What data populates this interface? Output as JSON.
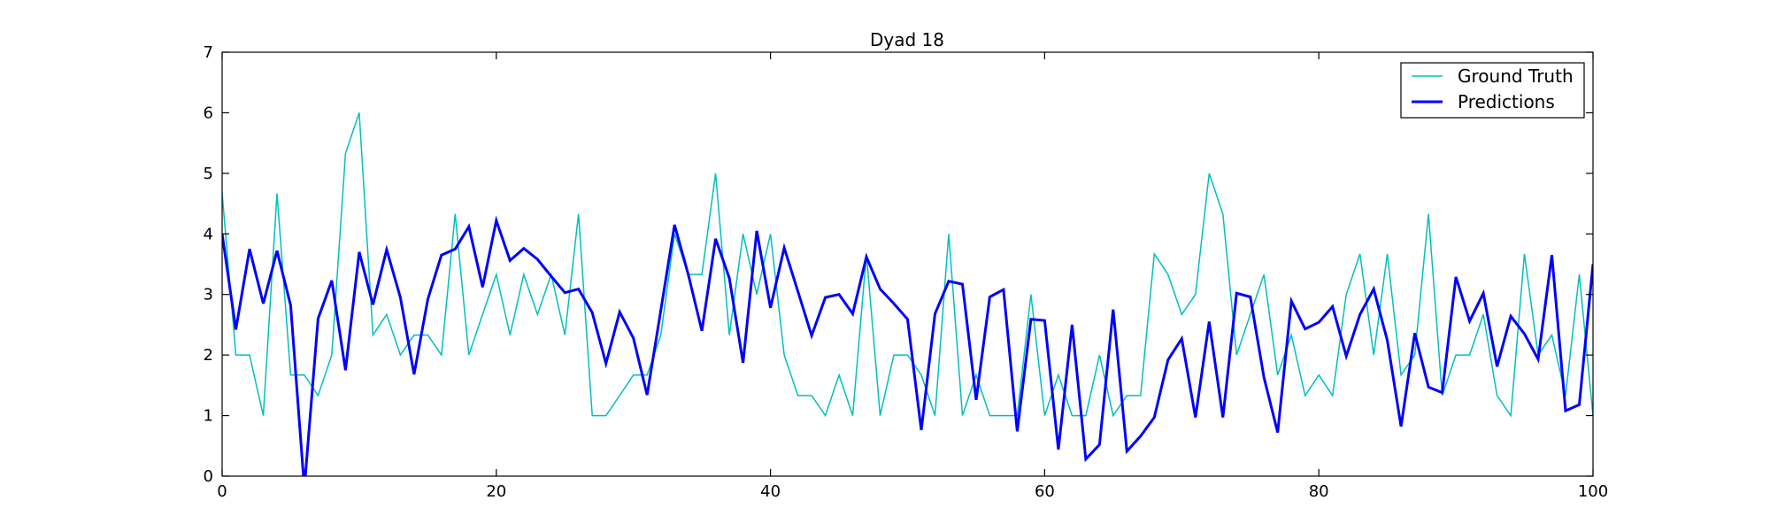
{
  "chart_data": {
    "type": "line",
    "title": "Dyad 18",
    "xlabel": "",
    "ylabel": "",
    "xlim": [
      0,
      100
    ],
    "ylim": [
      0,
      7
    ],
    "xticks": [
      0,
      20,
      40,
      60,
      80,
      100
    ],
    "yticks": [
      0,
      1,
      2,
      3,
      4,
      5,
      6,
      7
    ],
    "grid": false,
    "legend_position": "top-right",
    "x": [
      0,
      1,
      2,
      3,
      4,
      5,
      6,
      7,
      8,
      9,
      10,
      11,
      12,
      13,
      14,
      15,
      16,
      17,
      18,
      19,
      20,
      21,
      22,
      23,
      24,
      25,
      26,
      27,
      28,
      29,
      30,
      31,
      32,
      33,
      34,
      35,
      36,
      37,
      38,
      39,
      40,
      41,
      42,
      43,
      44,
      45,
      46,
      47,
      48,
      49,
      50,
      51,
      52,
      53,
      54,
      55,
      56,
      57,
      58,
      59,
      60,
      61,
      62,
      63,
      64,
      65,
      66,
      67,
      68,
      69,
      70,
      71,
      72,
      73,
      74,
      75,
      76,
      77,
      78,
      79,
      80,
      81,
      82,
      83,
      84,
      85,
      86,
      87,
      88,
      89,
      90,
      91,
      92,
      93,
      94,
      95,
      96,
      97,
      98,
      99,
      100
    ],
    "series": [
      {
        "name": "Ground Truth",
        "color": "#00bfbf",
        "values": [
          4.67,
          2.0,
          2.0,
          1.0,
          4.67,
          1.67,
          1.67,
          1.33,
          2.0,
          5.33,
          6.0,
          2.33,
          2.67,
          2.0,
          2.33,
          2.33,
          2.0,
          4.33,
          2.0,
          2.67,
          3.33,
          2.33,
          3.33,
          2.67,
          3.33,
          2.33,
          4.33,
          1.0,
          1.0,
          1.33,
          1.67,
          1.67,
          2.33,
          4.0,
          3.33,
          3.33,
          5.0,
          2.33,
          4.0,
          3.0,
          4.0,
          2.0,
          1.33,
          1.33,
          1.0,
          1.67,
          1.0,
          3.67,
          1.0,
          2.0,
          2.0,
          1.67,
          1.0,
          4.0,
          1.0,
          1.67,
          1.0,
          1.0,
          1.0,
          3.0,
          1.0,
          1.67,
          1.0,
          1.0,
          2.0,
          1.0,
          1.33,
          1.33,
          3.67,
          3.33,
          2.67,
          3.0,
          5.0,
          4.33,
          2.0,
          2.67,
          3.33,
          1.67,
          2.33,
          1.33,
          1.67,
          1.33,
          3.0,
          3.67,
          2.0,
          3.67,
          1.67,
          2.0,
          4.33,
          1.33,
          2.0,
          2.0,
          2.67,
          1.33,
          1.0,
          3.67,
          2.0,
          2.33,
          1.33,
          3.33,
          1.0
        ]
      },
      {
        "name": "Predictions",
        "color": "#0000ff",
        "values": [
          4.0,
          2.42,
          3.75,
          2.85,
          3.72,
          2.82,
          -0.2,
          2.6,
          3.23,
          1.75,
          3.7,
          2.83,
          3.74,
          2.95,
          1.68,
          2.92,
          3.65,
          3.75,
          4.12,
          3.12,
          4.22,
          3.56,
          3.76,
          3.58,
          3.3,
          3.03,
          3.09,
          2.7,
          1.86,
          2.71,
          2.28,
          1.34,
          2.74,
          4.15,
          3.33,
          2.4,
          3.92,
          3.27,
          1.87,
          4.05,
          2.78,
          3.77,
          3.05,
          2.32,
          2.95,
          3.0,
          2.68,
          3.62,
          3.09,
          2.85,
          2.59,
          0.76,
          2.68,
          3.22,
          3.17,
          1.26,
          2.96,
          3.08,
          0.74,
          2.59,
          2.57,
          0.44,
          2.5,
          0.28,
          0.52,
          2.75,
          0.41,
          0.66,
          0.97,
          1.92,
          2.27,
          0.97,
          2.55,
          0.97,
          3.02,
          2.96,
          1.63,
          0.72,
          2.89,
          2.43,
          2.54,
          2.8,
          1.98,
          2.67,
          3.09,
          2.24,
          0.82,
          2.36,
          1.47,
          1.38,
          3.29,
          2.56,
          3.02,
          1.81,
          2.64,
          2.35,
          1.93,
          3.65,
          1.08,
          1.18,
          3.5
        ]
      }
    ]
  }
}
